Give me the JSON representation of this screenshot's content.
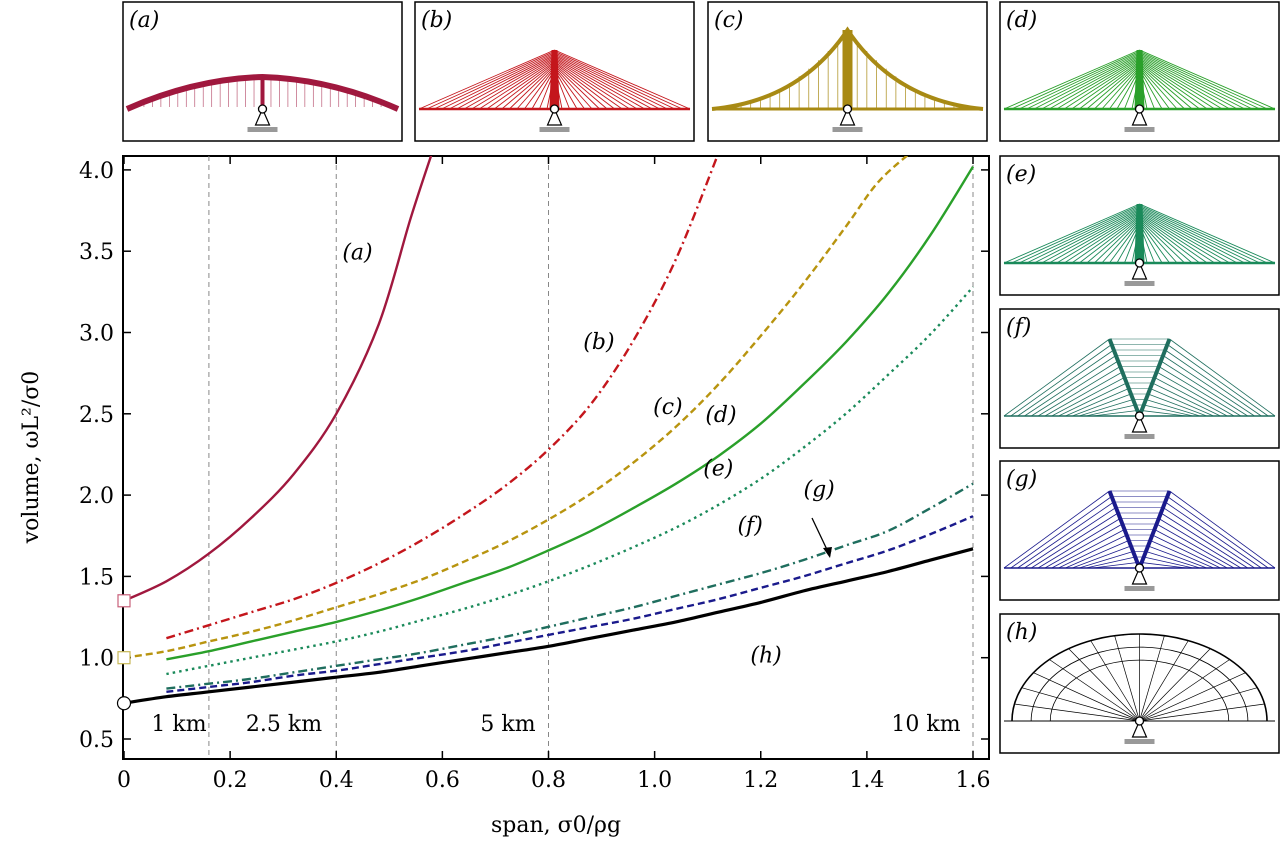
{
  "chart_data": {
    "type": "line",
    "xlabel": "span, σ0/ρg",
    "ylabel": "volume, ωL²/σ0",
    "xlim": [
      0,
      1.6
    ],
    "ylim": [
      0.4,
      4.1
    ],
    "x_ticks": [
      "0",
      "0.2",
      "0.4",
      "0.6",
      "0.8",
      "1.0",
      "1.2",
      "1.4",
      "1.6"
    ],
    "y_ticks": [
      "0.5",
      "1.0",
      "1.5",
      "2.0",
      "2.5",
      "3.0",
      "3.5",
      "4.0"
    ],
    "grid": false,
    "reference_lines": [
      {
        "x": 0.16,
        "label": "1 km"
      },
      {
        "x": 0.4,
        "label": "2.5 km"
      },
      {
        "x": 0.8,
        "label": "5 km"
      },
      {
        "x": 1.6,
        "label": "10 km"
      }
    ],
    "series": [
      {
        "name": "(a)",
        "color": "#a0183e",
        "style": "solid",
        "x": [
          0,
          0.08,
          0.16,
          0.24,
          0.32,
          0.4,
          0.48,
          0.54,
          0.58
        ],
        "y": [
          1.35,
          1.47,
          1.64,
          1.86,
          2.13,
          2.5,
          3.05,
          3.7,
          4.1
        ]
      },
      {
        "name": "(b)",
        "color": "#c4161c",
        "style": "dashdot",
        "x": [
          0.08,
          0.16,
          0.24,
          0.32,
          0.4,
          0.48,
          0.56,
          0.64,
          0.72,
          0.8,
          0.88,
          0.96,
          1.04,
          1.12
        ],
        "y": [
          1.12,
          1.2,
          1.28,
          1.36,
          1.46,
          1.58,
          1.72,
          1.88,
          2.06,
          2.28,
          2.56,
          2.95,
          3.45,
          4.1
        ]
      },
      {
        "name": "(c)",
        "color": "#b8940f",
        "style": "dashed",
        "x": [
          0,
          0.08,
          0.16,
          0.24,
          0.32,
          0.4,
          0.48,
          0.56,
          0.64,
          0.72,
          0.8,
          0.88,
          0.96,
          1.04,
          1.12,
          1.2,
          1.28,
          1.36,
          1.42,
          1.48
        ],
        "y": [
          1.0,
          1.04,
          1.1,
          1.16,
          1.23,
          1.31,
          1.39,
          1.48,
          1.59,
          1.71,
          1.85,
          2.01,
          2.2,
          2.42,
          2.68,
          2.98,
          3.3,
          3.65,
          3.92,
          4.1
        ]
      },
      {
        "name": "(d)",
        "color": "#2aa02a",
        "style": "solid",
        "x": [
          0.08,
          0.16,
          0.24,
          0.32,
          0.4,
          0.48,
          0.56,
          0.64,
          0.72,
          0.8,
          0.88,
          0.96,
          1.04,
          1.12,
          1.2,
          1.28,
          1.36,
          1.44,
          1.52,
          1.6
        ],
        "y": [
          0.99,
          1.04,
          1.1,
          1.16,
          1.22,
          1.29,
          1.37,
          1.46,
          1.55,
          1.66,
          1.78,
          1.92,
          2.07,
          2.24,
          2.44,
          2.68,
          2.94,
          3.24,
          3.6,
          4.02
        ]
      },
      {
        "name": "(e)",
        "color": "#1a8a5a",
        "style": "dotted",
        "x": [
          0.08,
          0.16,
          0.24,
          0.32,
          0.4,
          0.48,
          0.56,
          0.64,
          0.72,
          0.8,
          0.88,
          0.96,
          1.04,
          1.12,
          1.2,
          1.28,
          1.36,
          1.44,
          1.52,
          1.6
        ],
        "y": [
          0.9,
          0.95,
          1.0,
          1.05,
          1.1,
          1.16,
          1.23,
          1.3,
          1.38,
          1.47,
          1.57,
          1.68,
          1.8,
          1.94,
          2.1,
          2.29,
          2.5,
          2.74,
          2.99,
          3.28
        ]
      },
      {
        "name": "(f)",
        "color": "#1f6e5e",
        "style": "dashdot",
        "x": [
          0.08,
          0.16,
          0.24,
          0.32,
          0.4,
          0.48,
          0.56,
          0.64,
          0.72,
          0.8,
          0.88,
          0.96,
          1.04,
          1.12,
          1.2,
          1.28,
          1.36,
          1.44,
          1.52,
          1.6
        ],
        "y": [
          0.81,
          0.84,
          0.87,
          0.91,
          0.95,
          0.99,
          1.03,
          1.08,
          1.13,
          1.19,
          1.25,
          1.31,
          1.38,
          1.45,
          1.52,
          1.6,
          1.69,
          1.78,
          1.92,
          2.07
        ]
      },
      {
        "name": "(g)",
        "color": "#1a1a8c",
        "style": "dashed",
        "x": [
          0.08,
          0.16,
          0.24,
          0.32,
          0.4,
          0.48,
          0.56,
          0.64,
          0.72,
          0.8,
          0.88,
          0.96,
          1.04,
          1.12,
          1.2,
          1.28,
          1.36,
          1.44,
          1.52,
          1.6
        ],
        "y": [
          0.79,
          0.82,
          0.85,
          0.89,
          0.92,
          0.96,
          1.0,
          1.04,
          1.09,
          1.14,
          1.19,
          1.24,
          1.3,
          1.36,
          1.43,
          1.5,
          1.58,
          1.66,
          1.76,
          1.87
        ]
      },
      {
        "name": "(h)",
        "color": "#000000",
        "style": "solid",
        "x": [
          0,
          0.08,
          0.16,
          0.24,
          0.32,
          0.4,
          0.48,
          0.56,
          0.64,
          0.72,
          0.8,
          0.88,
          0.96,
          1.04,
          1.12,
          1.2,
          1.28,
          1.36,
          1.44,
          1.52,
          1.6
        ],
        "y": [
          0.72,
          0.76,
          0.79,
          0.82,
          0.85,
          0.88,
          0.91,
          0.95,
          0.99,
          1.03,
          1.07,
          1.12,
          1.17,
          1.22,
          1.28,
          1.34,
          1.41,
          1.47,
          1.53,
          1.6,
          1.67
        ]
      }
    ],
    "curve_labels": [
      {
        "text": "(a)",
        "x": 0.44,
        "y": 3.45
      },
      {
        "text": "(b)",
        "x": 0.895,
        "y": 2.9
      },
      {
        "text": "(c)",
        "x": 1.025,
        "y": 2.5
      },
      {
        "text": "(d)",
        "x": 1.125,
        "y": 2.45
      },
      {
        "text": "(e)",
        "x": 1.12,
        "y": 2.12
      },
      {
        "text": "(g)",
        "x": 1.31,
        "y": 1.99
      },
      {
        "text": "(f)",
        "x": 1.18,
        "y": 1.77
      },
      {
        "text": "(h)",
        "x": 1.21,
        "y": 0.97
      }
    ],
    "start_markers": [
      {
        "shape": "square",
        "x": 0,
        "y": 1.35,
        "color": "#c8607a"
      },
      {
        "shape": "square",
        "x": 0,
        "y": 1.0,
        "color": "#c8b858"
      },
      {
        "shape": "circle",
        "x": 0,
        "y": 0.72,
        "color": "#000000"
      }
    ]
  },
  "panels": [
    {
      "label": "(a)",
      "type": "arch",
      "color": "#a0183e"
    },
    {
      "label": "(b)",
      "type": "fan",
      "color": "#c4161c"
    },
    {
      "label": "(c)",
      "type": "suspension",
      "color": "#a88a14"
    },
    {
      "label": "(d)",
      "type": "fan",
      "color": "#2aa02a"
    },
    {
      "label": "(e)",
      "type": "fan",
      "color": "#1a8a5a"
    },
    {
      "label": "(f)",
      "type": "vfan",
      "color": "#1f6e5e"
    },
    {
      "label": "(g)",
      "type": "vfan",
      "color": "#1a1a8c"
    },
    {
      "label": "(h)",
      "type": "dome",
      "color": "#000000"
    }
  ]
}
